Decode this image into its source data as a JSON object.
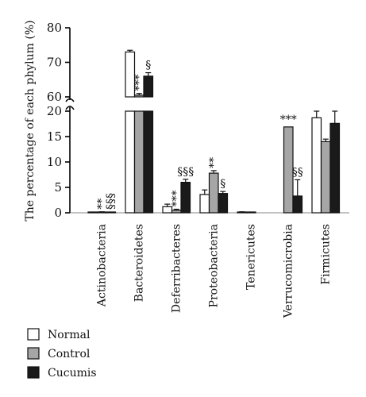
{
  "chart_data": {
    "type": "bar",
    "ylabel": "The percentage of each phylum (%)",
    "ylim": [
      0,
      80
    ],
    "axis_break": {
      "lower": [
        0,
        20
      ],
      "upper": [
        60,
        80
      ]
    },
    "lower_ticks": [
      0,
      5,
      10,
      15,
      20
    ],
    "upper_ticks": [
      60,
      70,
      80
    ],
    "categories": [
      "Actinobacteria",
      "Bacteroidetes",
      "Deferribacteres",
      "Proteobacteria",
      "Tenericutes",
      "Verrucomicrobia",
      "Firmicutes"
    ],
    "series": [
      {
        "name": "Normal",
        "color": "#ffffff",
        "values": [
          0.1,
          73.0,
          1.2,
          3.6,
          0.15,
          0,
          18.7
        ],
        "errors": [
          0.05,
          0.5,
          0.5,
          0.9,
          0.05,
          0,
          1.7
        ]
      },
      {
        "name": "Control",
        "color": "#a6a6a6",
        "values": [
          0.15,
          60.5,
          0.5,
          7.8,
          0.1,
          16.9,
          14.0
        ],
        "errors": [
          0.05,
          0.5,
          0.2,
          0.5,
          0.05,
          0,
          0.5
        ]
      },
      {
        "name": "Cucumis",
        "color": "#1a1a1a",
        "values": [
          0.1,
          66.0,
          6.0,
          3.8,
          0,
          3.3,
          17.6
        ],
        "errors": [
          0.05,
          1.0,
          0.6,
          0.4,
          0,
          3.2,
          2.5
        ]
      }
    ],
    "annotations": [
      {
        "category": "Actinobacteria",
        "series": "Control",
        "text": "**",
        "vertical": true
      },
      {
        "category": "Actinobacteria",
        "series": "Cucumis",
        "text": "§§§",
        "vertical": true
      },
      {
        "category": "Bacteroidetes",
        "series": "Control",
        "text": "***",
        "vertical": true
      },
      {
        "category": "Bacteroidetes",
        "series": "Cucumis",
        "text": "§",
        "vertical": false
      },
      {
        "category": "Deferribacteres",
        "series": "Control",
        "text": "***",
        "vertical": true
      },
      {
        "category": "Deferribacteres",
        "series": "Cucumis",
        "text": "§§§",
        "vertical": false
      },
      {
        "category": "Proteobacteria",
        "series": "Control",
        "text": "**",
        "vertical": true
      },
      {
        "category": "Proteobacteria",
        "series": "Cucumis",
        "text": "§",
        "vertical": false
      },
      {
        "category": "Verrucomicrobia",
        "series": "Control",
        "text": "***",
        "vertical": false
      },
      {
        "category": "Verrucomicrobia",
        "series": "Cucumis",
        "text": "§§",
        "vertical": false
      }
    ],
    "legend": {
      "position": "bottom-left",
      "entries": [
        "Normal",
        "Control",
        "Cucumis"
      ]
    }
  }
}
